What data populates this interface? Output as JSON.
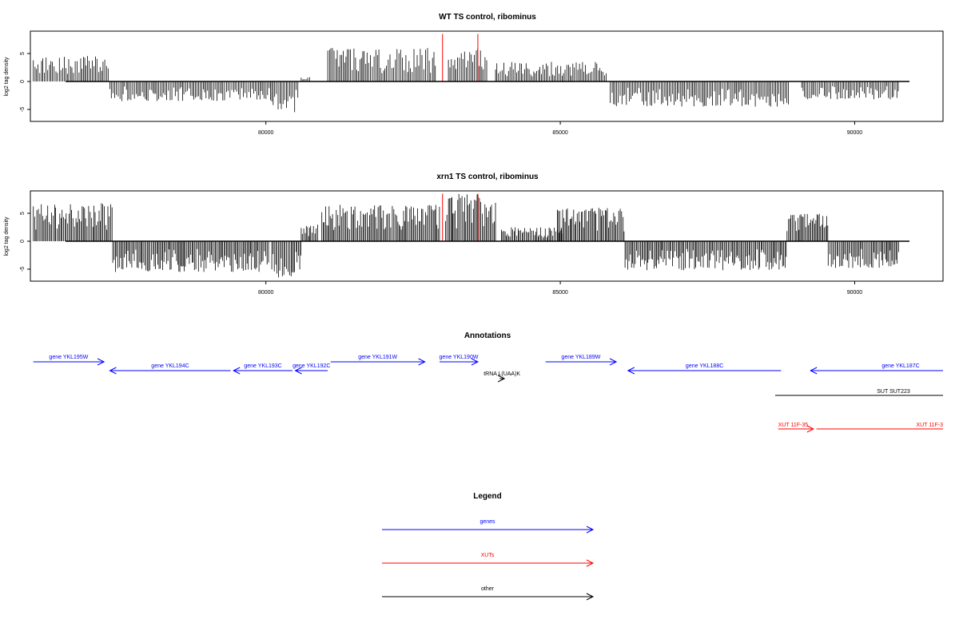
{
  "chart_data": [
    {
      "type": "bar",
      "title": "WT TS control, ribominus",
      "xlabel": "",
      "ylabel": "log2 tag density",
      "xlim": [
        76000,
        91500
      ],
      "ylim": [
        -7,
        9
      ],
      "yticks": [
        -5,
        0,
        5
      ],
      "yticklabels": [
        "-5",
        "0",
        "5"
      ],
      "xticks": [
        80000,
        85000,
        90000
      ],
      "xticklabels": [
        "80000",
        "85000",
        "90000"
      ],
      "signal_regions": [
        {
          "start": 76050,
          "end": 77350,
          "max": 4.6
        },
        {
          "start": 77350,
          "end": 80100,
          "min": -3.5
        },
        {
          "start": 80100,
          "end": 80550,
          "min": -5.5
        },
        {
          "start": 80600,
          "end": 80750,
          "max": 0.8
        },
        {
          "start": 81050,
          "end": 82900,
          "max": 6.0
        },
        {
          "start": 83100,
          "end": 83750,
          "max": 6.0
        },
        {
          "start": 83900,
          "end": 85800,
          "max": 3.5
        },
        {
          "start": 85850,
          "end": 88900,
          "min": -4.5
        },
        {
          "start": 89100,
          "end": 90750,
          "min": -3.2
        }
      ],
      "highlight_peaks": [
        {
          "x": 83000,
          "value": 8.5,
          "color": "#ff0000"
        },
        {
          "x": 83600,
          "value": 8.5,
          "color": "#ff0000"
        }
      ]
    },
    {
      "type": "bar",
      "title": "xrn1 TS control, ribominus",
      "xlabel": "",
      "ylabel": "log2 tag density",
      "xlim": [
        76000,
        91500
      ],
      "ylim": [
        -7,
        9
      ],
      "yticks": [
        -5,
        0,
        5
      ],
      "yticklabels": [
        "-5",
        "0",
        "5"
      ],
      "xticks": [
        80000,
        85000,
        90000
      ],
      "xticklabels": [
        "80000",
        "85000",
        "90000"
      ],
      "signal_regions": [
        {
          "start": 76050,
          "end": 77400,
          "max": 6.8
        },
        {
          "start": 77400,
          "end": 80050,
          "min": -5.5
        },
        {
          "start": 80100,
          "end": 80600,
          "min": -6.5
        },
        {
          "start": 80600,
          "end": 80900,
          "max": 3.0
        },
        {
          "start": 80950,
          "end": 82950,
          "max": 6.5
        },
        {
          "start": 83050,
          "end": 83900,
          "max": 8.5
        },
        {
          "start": 84000,
          "end": 85050,
          "max": 2.5
        },
        {
          "start": 84950,
          "end": 86100,
          "max": 6.0
        },
        {
          "start": 86100,
          "end": 88850,
          "min": -5.2
        },
        {
          "start": 88850,
          "end": 89550,
          "max": 5.0
        },
        {
          "start": 89550,
          "end": 90750,
          "min": -4.8
        }
      ],
      "highlight_peaks": [
        {
          "x": 83000,
          "value": 8.5,
          "color": "#ff0000"
        },
        {
          "x": 83600,
          "value": 8.5,
          "color": "#ff0000"
        }
      ]
    },
    {
      "type": "gene-annotation-track",
      "title": "Annotations",
      "xlim": [
        76000,
        91500
      ],
      "features": [
        {
          "label": "gene YKL195W",
          "start": 76050,
          "end": 77250,
          "strand": "+",
          "kind": "gene",
          "row": 0
        },
        {
          "label": "gene YKL194C",
          "start": 77350,
          "end": 79400,
          "strand": "-",
          "kind": "gene",
          "row": 1
        },
        {
          "label": "gene YKL193C",
          "start": 79450,
          "end": 80450,
          "strand": "-",
          "kind": "gene",
          "row": 1
        },
        {
          "label": "gene YKL192C",
          "start": 80500,
          "end": 81050,
          "strand": "-",
          "kind": "gene",
          "row": 1
        },
        {
          "label": "gene YKL191W",
          "start": 81100,
          "end": 82700,
          "strand": "+",
          "kind": "gene",
          "row": 0
        },
        {
          "label": "gene YKL190W",
          "start": 82950,
          "end": 83600,
          "strand": "+",
          "kind": "gene",
          "row": 0
        },
        {
          "label": "tRNA L(UAA)K",
          "start": 83970,
          "end": 84050,
          "strand": "+",
          "kind": "other",
          "row": 2
        },
        {
          "label": "gene YKL189W",
          "start": 84750,
          "end": 85950,
          "strand": "+",
          "kind": "gene",
          "row": 0
        },
        {
          "label": "gene YKL188C",
          "start": 86150,
          "end": 88750,
          "strand": "-",
          "kind": "gene",
          "row": 1
        },
        {
          "label": "gene YKL187C",
          "start": 89250,
          "end": 91500,
          "strand": "-",
          "kind": "gene",
          "row": 1
        },
        {
          "label": "SUT SUT223",
          "start": 88650,
          "end": 91500,
          "strand": ".",
          "kind": "other",
          "row": 3
        },
        {
          "label": "XUT 11F-35",
          "start": 88700,
          "end": 89300,
          "strand": "+",
          "kind": "xut",
          "row": 4
        },
        {
          "label": "XUT 11F-3",
          "start": 89350,
          "end": 91500,
          "strand": ".",
          "kind": "xut",
          "row": 5
        }
      ]
    }
  ],
  "legend": {
    "title": "Legend",
    "items": [
      {
        "label": "genes",
        "color": "#0000ff"
      },
      {
        "label": "XUTs",
        "color": "#ff0000"
      },
      {
        "label": "other",
        "color": "#000000"
      }
    ]
  }
}
